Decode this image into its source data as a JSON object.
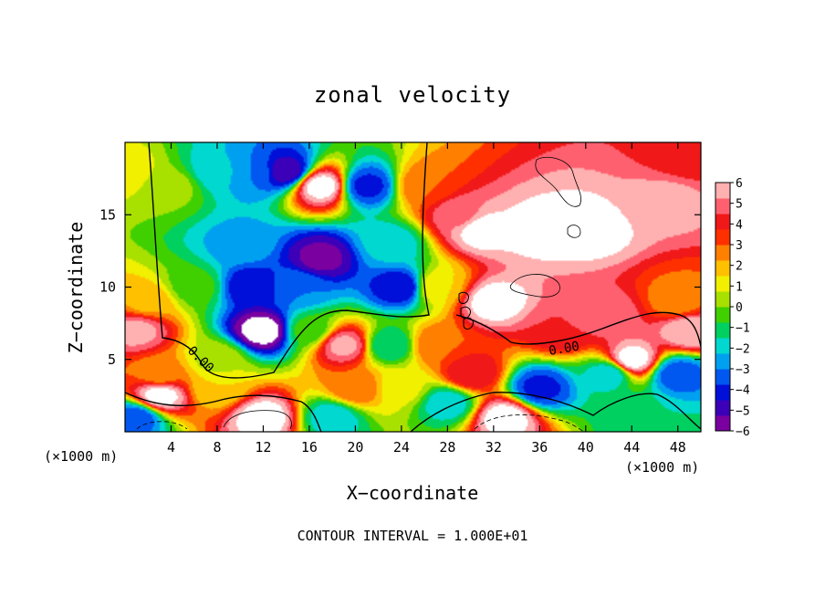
{
  "chart_data": {
    "type": "heatmap",
    "title": "zonal velocity",
    "xlabel": "X−coordinate",
    "ylabel": "Z−coordinate",
    "x_unit_left": "(×1000 m)",
    "x_unit_right": "(×1000 m)",
    "footer": "CONTOUR INTERVAL = 1.000E+01",
    "xlim": [
      0,
      50
    ],
    "ylim": [
      0,
      20
    ],
    "x_ticks": [
      4,
      8,
      12,
      16,
      20,
      24,
      28,
      32,
      36,
      40,
      44,
      48
    ],
    "x_tick_labels": [
      "4",
      "8",
      "12",
      "16",
      "20",
      "24",
      "28",
      "32",
      "36",
      "40",
      "44",
      "48"
    ],
    "y_ticks": [
      5,
      10,
      15
    ],
    "y_tick_labels": [
      "5",
      "10",
      "15"
    ],
    "colorbar": {
      "range": [
        -6,
        6
      ],
      "ticks": [
        6,
        5,
        4,
        3,
        2,
        1,
        0,
        -1,
        -2,
        -3,
        -4,
        -5,
        -6
      ],
      "tick_labels": [
        "6",
        "5",
        "4",
        "3",
        "2",
        "1",
        "0",
        "−1",
        "−2",
        "−3",
        "−4",
        "−5",
        "−6"
      ],
      "colors": [
        "#7a00a0",
        "#3c00b8",
        "#0010d8",
        "#0058f0",
        "#00a0f0",
        "#00d8d0",
        "#00d060",
        "#40d000",
        "#a8e000",
        "#f0f000",
        "#ffc000",
        "#ff8000",
        "#ff3000",
        "#f01818",
        "#ff6070",
        "#ffb0b0"
      ],
      "clip_color": "#ffffff"
    },
    "contour_labels": [
      "0.00",
      "0.00"
    ],
    "field": [
      {
        "x": 0,
        "z": 18,
        "u": 1.2
      },
      {
        "x": 4,
        "z": 17,
        "u": 0.3
      },
      {
        "x": 6,
        "z": 10,
        "u": -0.4
      },
      {
        "x": 2,
        "z": 9,
        "u": 2.0
      },
      {
        "x": 1,
        "z": 7,
        "u": 5.5
      },
      {
        "x": 3,
        "z": 4,
        "u": 2.5
      },
      {
        "x": 3,
        "z": 2.5,
        "u": 6.5
      },
      {
        "x": 1,
        "z": 1,
        "u": -3.5
      },
      {
        "x": 8,
        "z": 18,
        "u": -2.0
      },
      {
        "x": 11,
        "z": 18,
        "u": -3.0
      },
      {
        "x": 10,
        "z": 13,
        "u": -2.5
      },
      {
        "x": 11,
        "z": 10,
        "u": -4.5
      },
      {
        "x": 12,
        "z": 7,
        "u": -6.5
      },
      {
        "x": 8,
        "z": 5,
        "u": 0.5
      },
      {
        "x": 8,
        "z": 3,
        "u": 1.5
      },
      {
        "x": 12,
        "z": 1,
        "u": 6.5
      },
      {
        "x": 14,
        "z": 18,
        "u": -5.0
      },
      {
        "x": 17,
        "z": 17,
        "u": 6.5
      },
      {
        "x": 17,
        "z": 12,
        "u": -5.5
      },
      {
        "x": 15,
        "z": 10,
        "u": -3.0
      },
      {
        "x": 16,
        "z": 7,
        "u": -0.5
      },
      {
        "x": 19,
        "z": 6,
        "u": 5.5
      },
      {
        "x": 20,
        "z": 3,
        "u": 3.0
      },
      {
        "x": 18,
        "z": 1,
        "u": -2.0
      },
      {
        "x": 21,
        "z": 17,
        "u": -4.0
      },
      {
        "x": 23,
        "z": 13,
        "u": -2.0
      },
      {
        "x": 24,
        "z": 10,
        "u": -4.5
      },
      {
        "x": 23,
        "z": 6,
        "u": -1.5
      },
      {
        "x": 24,
        "z": 3,
        "u": 1.0
      },
      {
        "x": 26,
        "z": 17,
        "u": 3.0
      },
      {
        "x": 27,
        "z": 10,
        "u": 1.5
      },
      {
        "x": 27,
        "z": 6,
        "u": 3.0
      },
      {
        "x": 28,
        "z": 2,
        "u": -2.0
      },
      {
        "x": 29,
        "z": 15,
        "u": 5.0
      },
      {
        "x": 31,
        "z": 14,
        "u": 6.5
      },
      {
        "x": 32,
        "z": 9,
        "u": 6.5
      },
      {
        "x": 30,
        "z": 4,
        "u": 4.5
      },
      {
        "x": 33,
        "z": 1,
        "u": 6.5
      },
      {
        "x": 36,
        "z": 14,
        "u": 6.5
      },
      {
        "x": 38,
        "z": 7,
        "u": 4.5
      },
      {
        "x": 36,
        "z": 3,
        "u": -4.0
      },
      {
        "x": 40,
        "z": 14,
        "u": 6.5
      },
      {
        "x": 42,
        "z": 8,
        "u": 5.0
      },
      {
        "x": 42,
        "z": 4,
        "u": -2.0
      },
      {
        "x": 44,
        "z": 5,
        "u": 6.5
      },
      {
        "x": 45,
        "z": 1,
        "u": -1.5
      },
      {
        "x": 47,
        "z": 16,
        "u": 5.5
      },
      {
        "x": 48,
        "z": 9,
        "u": 2.5
      },
      {
        "x": 48,
        "z": 4,
        "u": -3.5
      },
      {
        "x": 49,
        "z": 7,
        "u": 6.0
      },
      {
        "x": 49,
        "z": 19,
        "u": 4.0
      }
    ]
  }
}
